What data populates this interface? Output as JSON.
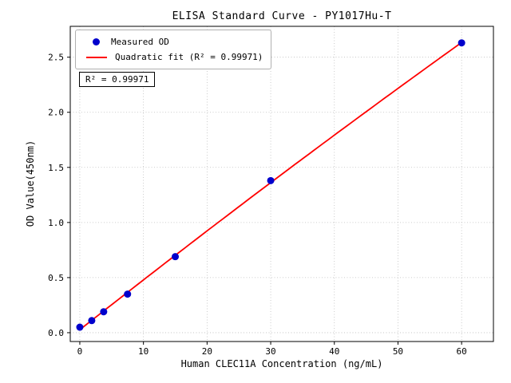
{
  "chart_data": {
    "type": "scatter",
    "title": "ELISA Standard Curve - PY1017Hu-T",
    "xlabel": "Human CLEC11A Concentration (ng/mL)",
    "ylabel": "OD Value(450nm)",
    "xlim": [
      -1.5,
      65
    ],
    "ylim": [
      -0.08,
      2.78
    ],
    "xticks": [
      0,
      10,
      20,
      30,
      40,
      50,
      60
    ],
    "xtick_labels": [
      "0",
      "10",
      "20",
      "30",
      "40",
      "50",
      "60"
    ],
    "yticks": [
      0,
      0.5,
      1.0,
      1.5,
      2.0,
      2.5
    ],
    "ytick_labels": [
      "0.0",
      "0.5",
      "1.0",
      "1.5",
      "2.0",
      "2.5"
    ],
    "grid": true,
    "legend_position": "upper-left",
    "series": [
      {
        "name": "Measured OD",
        "type": "scatter",
        "color": "#0000cc",
        "x": [
          0,
          1.875,
          3.75,
          7.5,
          15,
          30,
          60
        ],
        "y": [
          0.05,
          0.11,
          0.19,
          0.35,
          0.69,
          1.38,
          2.63
        ]
      },
      {
        "name": "Quadratic fit (R² = 0.99971)",
        "type": "line",
        "color": "#ff0000",
        "fit": "quadratic"
      }
    ],
    "annotation": "R² = 0.99971"
  }
}
